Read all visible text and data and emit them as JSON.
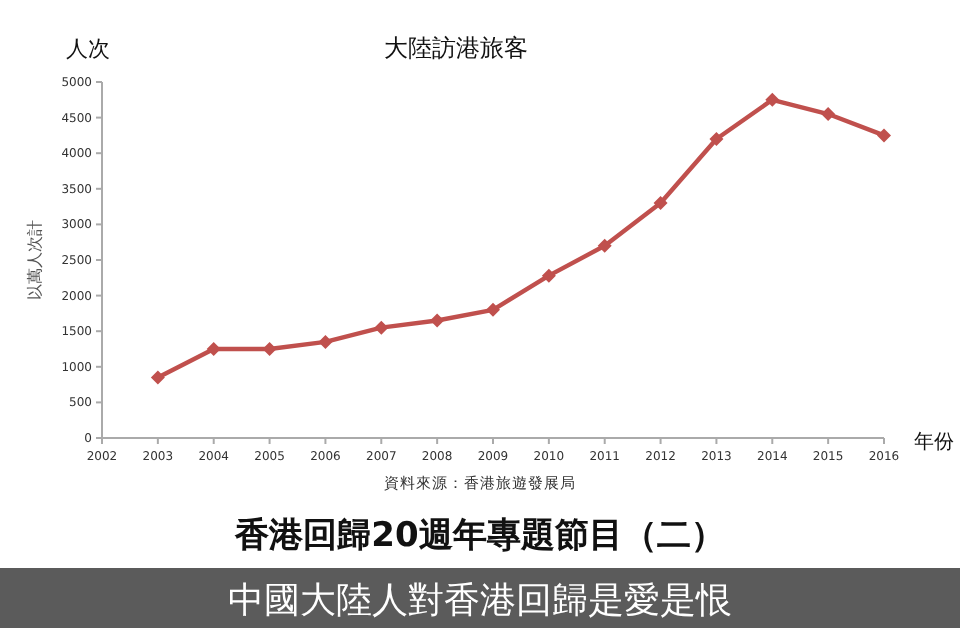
{
  "chart_data": {
    "type": "line",
    "title": "大陸訪港旅客",
    "xlabel": "年份",
    "ylabel": "以萬人次計",
    "annotations": [
      "人次",
      "資料來源：香港旅遊發展局",
      "香港回歸20週年專題節目（二）",
      "中國大陸人對香港回歸是愛是恨"
    ],
    "x": [
      2003,
      2004,
      2005,
      2006,
      2007,
      2008,
      2009,
      2010,
      2011,
      2012,
      2013,
      2014,
      2015,
      2016
    ],
    "series": [
      {
        "color": "#c0504d",
        "values": [
          850,
          1250,
          1250,
          1350,
          1550,
          1650,
          1800,
          2280,
          2700,
          3300,
          4200,
          4750,
          4550,
          4250
        ]
      }
    ],
    "xlim": [
      2002,
      2016
    ],
    "xticks": [
      2002,
      2003,
      2004,
      2005,
      2006,
      2007,
      2008,
      2009,
      2010,
      2011,
      2012,
      2013,
      2014,
      2015,
      2016
    ],
    "ylim": [
      0,
      5000
    ],
    "yticks": [
      0,
      500,
      1000,
      1500,
      2000,
      2500,
      3000,
      3500,
      4000,
      4500,
      5000
    ],
    "marker": "diamond",
    "line_style": "solid",
    "grid": false
  }
}
